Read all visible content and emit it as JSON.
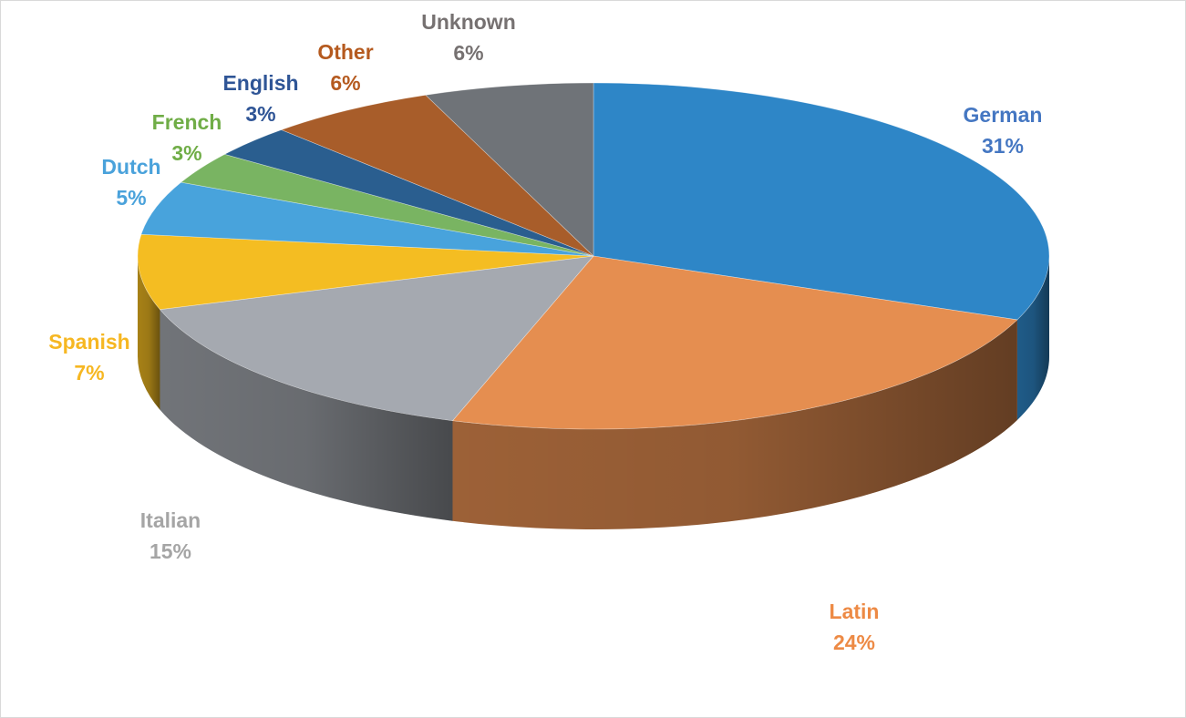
{
  "chart_data": {
    "type": "pie",
    "style": "3d-exploded-tilt",
    "categories": [
      "German",
      "Latin",
      "Italian",
      "Spanish",
      "Dutch",
      "French",
      "English",
      "Other",
      "Unknown"
    ],
    "values": [
      31,
      24,
      15,
      7,
      5,
      3,
      3,
      6,
      6
    ],
    "percent_labels": [
      "31%",
      "24%",
      "15%",
      "7%",
      "5%",
      "3%",
      "3%",
      "6%",
      "6%"
    ],
    "colors": [
      "#2e86c7",
      "#e58e50",
      "#a5a9b0",
      "#f4bd22",
      "#48a3dc",
      "#79b462",
      "#2a5e8f",
      "#a85d2a",
      "#6f7378"
    ],
    "label_colors": [
      "#4577c2",
      "#ed8a45",
      "#a5a5a5",
      "#f6b722",
      "#4aa2db",
      "#70ad47",
      "#2f5596",
      "#b55a1f",
      "#767171"
    ],
    "start_angle": "12 o'clock",
    "direction": "clockwise",
    "legend": "none"
  }
}
